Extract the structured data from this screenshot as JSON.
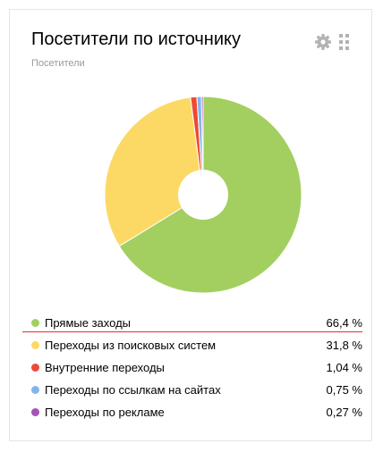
{
  "widget": {
    "title": "Посетители по источнику",
    "subtitle": "Посетители",
    "settings_icon": "gear-icon",
    "drag_icon": "drag-handle-icon",
    "icon_color": "#b3b3b3"
  },
  "chart_data": {
    "type": "pie",
    "style": "donut",
    "slices": [
      {
        "label": "Прямые заходы",
        "value": 66.4,
        "display": "66,4 %",
        "color": "#a2cf60"
      },
      {
        "label": "Переходы из поисковых систем",
        "value": 31.8,
        "display": "31,8 %",
        "color": "#fcd965"
      },
      {
        "label": "Внутренние переходы",
        "value": 1.04,
        "display": "1,04 %",
        "color": "#ec4a35"
      },
      {
        "label": "Переходы по ссылкам на сайтах",
        "value": 0.75,
        "display": "0,75 %",
        "color": "#83b5ec"
      },
      {
        "label": "Переходы по рекламе",
        "value": 0.27,
        "display": "0,27 %",
        "color": "#a453b8"
      }
    ],
    "legend_placement": "bottom",
    "highlighted_index": 0,
    "highlight_color": "#f0272f"
  }
}
